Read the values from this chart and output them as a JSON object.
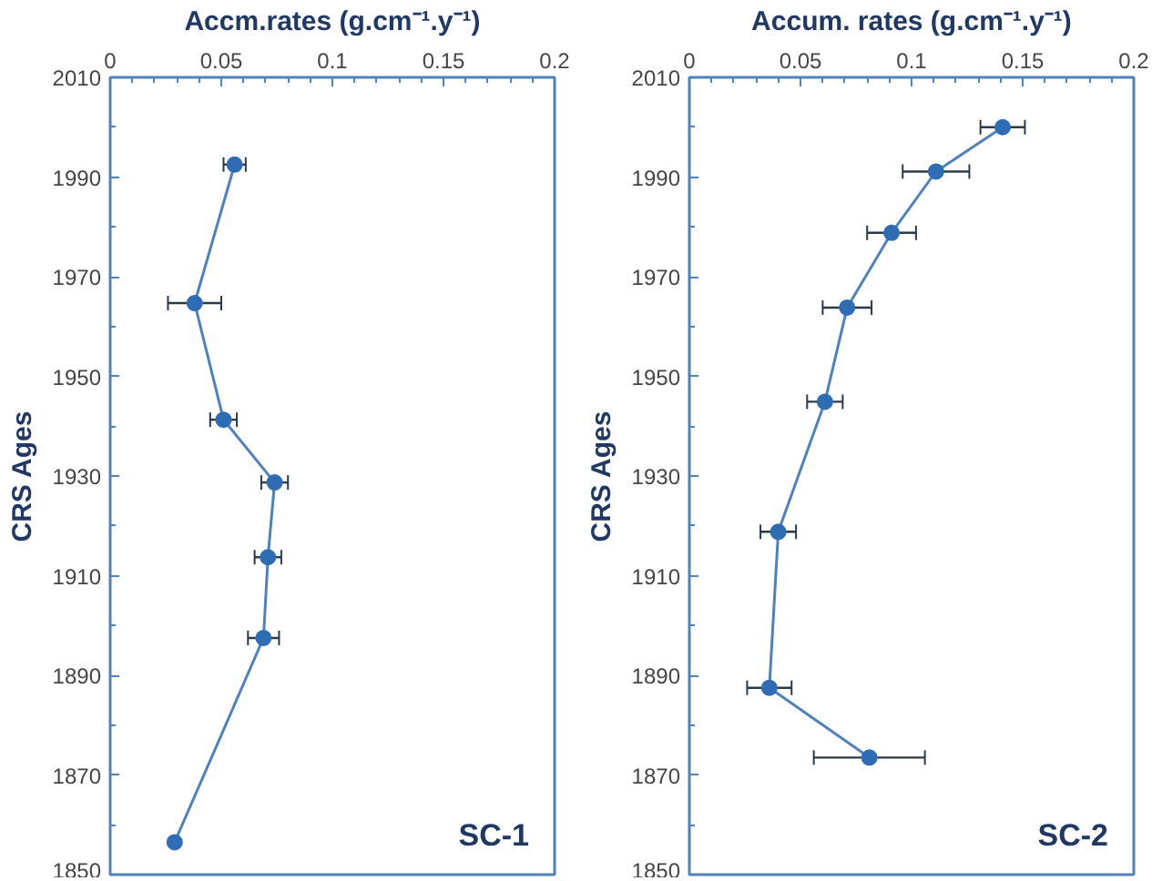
{
  "chart_data": [
    {
      "type": "line",
      "xlabel": "Accm.rates (g.cm⁻¹.y⁻¹)",
      "ylabel": "CRS Ages",
      "annotations": [
        "SC-1"
      ],
      "marker": "circle",
      "line_style": "solid",
      "grid": false,
      "series": [
        {
          "color": "#4f81bd",
          "x": [
            0.056,
            0.038,
            0.051,
            0.074,
            0.071,
            0.069,
            0.029
          ],
          "values": [
            1992.5,
            1964.7,
            1941.3,
            1928.7,
            1913.7,
            1897.5,
            1856.5
          ],
          "xerrors": [
            0.005,
            0.012,
            0.006,
            0.006,
            0.006,
            0.007,
            null
          ]
        }
      ],
      "xlim": [
        0,
        0.2
      ],
      "xticks": [
        0,
        0.05,
        0.1,
        0.15,
        0.2
      ],
      "ylim": [
        1850,
        2010
      ],
      "yticks": [
        1850,
        1870,
        1890,
        1910,
        1930,
        1950,
        1970,
        1990,
        2010
      ]
    },
    {
      "type": "line",
      "xlabel": "Accum. rates (g.cm⁻¹.y⁻¹)",
      "ylabel": "CRS Ages",
      "annotations": [
        "SC-2"
      ],
      "marker": "circle",
      "line_style": "solid",
      "grid": false,
      "series": [
        {
          "color": "#4f81bd",
          "x": [
            0.141,
            0.111,
            0.091,
            0.071,
            0.061,
            0.04,
            0.036,
            0.081
          ],
          "values": [
            2000,
            1991.1,
            1978.8,
            1963.8,
            1944.9,
            1918.8,
            1887.5,
            1873.5
          ],
          "xerrors": [
            0.01,
            0.015,
            0.011,
            0.011,
            0.008,
            0.008,
            0.01,
            0.025
          ]
        }
      ],
      "xlim": [
        0,
        0.2
      ],
      "xticks": [
        0,
        0.05,
        0.1,
        0.15,
        0.2
      ],
      "ylim": [
        1850,
        2010
      ],
      "yticks": [
        1850,
        1870,
        1890,
        1910,
        1930,
        1950,
        1970,
        1990,
        2010
      ]
    }
  ]
}
